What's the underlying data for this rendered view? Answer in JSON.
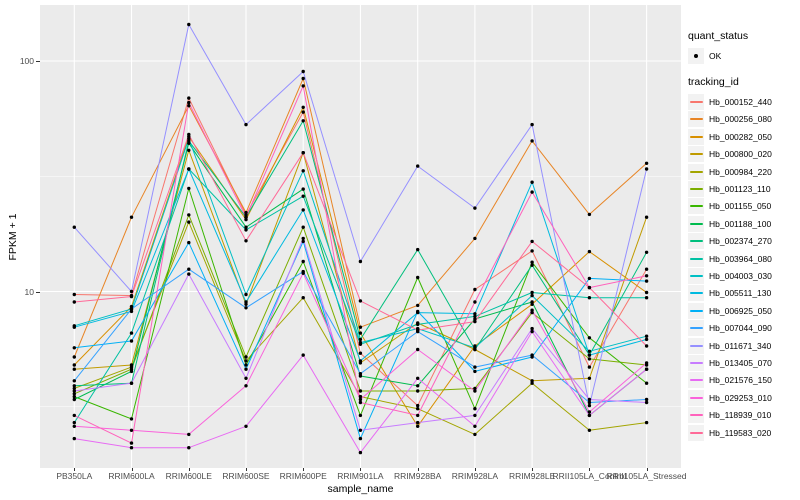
{
  "figure": {
    "panel_background": "#EBEBEB",
    "grid_color": "#FFFFFF",
    "axis_text_color": "#4D4D4D",
    "point_color": "#000000"
  },
  "legend": {
    "quant_status_title": "quant_status",
    "quant_status_items": [
      {
        "label": "OK",
        "marker": "black-point"
      }
    ],
    "tracking_id_title": "tracking_id",
    "key_background": "#F2F2F2"
  },
  "chart_data": {
    "type": "line",
    "title": "",
    "xlabel": "sample_name",
    "ylabel": "FPKM + 1",
    "y_scale": "log10",
    "y_ticks": [
      100,
      10
    ],
    "y_minor_ticks": [
      31.62,
      3.162
    ],
    "ylim": [
      1.72,
      175
    ],
    "grid": true,
    "legend_position": "right",
    "marker": "black-point",
    "categories": [
      "PB350LA",
      "RRIM600LA",
      "RRIM600LE",
      "RRIM600SE",
      "RRIM600PE",
      "RRIM901LA",
      "RRIM928BA",
      "RRIM928LA",
      "RRIM928LE",
      "RRII105LA_Control",
      "RRII105LA_Stressed"
    ],
    "series": [
      {
        "name": "Hb_000152_440",
        "color": "#F8766D",
        "values": [
          9.7,
          9.6,
          69,
          21.5,
          60,
          5.4,
          3.2,
          10.2,
          15.0,
          4.7,
          12.5
        ]
      },
      {
        "name": "Hb_000256_080",
        "color": "#E88526",
        "values": [
          5.2,
          21,
          64,
          22,
          84,
          7.0,
          8.7,
          17,
          45,
          21.6,
          36
        ]
      },
      {
        "name": "Hb_000282_050",
        "color": "#D89000",
        "values": [
          4.8,
          8.6,
          47,
          20.5,
          63,
          6.6,
          2.6,
          5.8,
          8.8,
          14.9,
          9.9
        ]
      },
      {
        "name": "Hb_000800_020",
        "color": "#C09B00",
        "values": [
          4.6,
          4.8,
          41,
          8.8,
          40,
          4.9,
          7.3,
          5.6,
          4.1,
          4.2,
          21
        ]
      },
      {
        "name": "Hb_000984_220",
        "color": "#A3A500",
        "values": [
          3.8,
          4.7,
          20,
          5.0,
          9.4,
          3.5,
          3.1,
          2.4,
          4.0,
          2.5,
          2.7
        ]
      },
      {
        "name": "Hb_001123_110",
        "color": "#7CAE00",
        "values": [
          3.6,
          4.6,
          21.5,
          5.2,
          19,
          3.7,
          3.7,
          3.8,
          8.1,
          5.1,
          4.8
        ]
      },
      {
        "name": "Hb_001155_050",
        "color": "#39B600",
        "values": [
          3.5,
          2.8,
          28,
          4.8,
          13.5,
          2.9,
          11.5,
          3.1,
          13.4,
          6.3,
          4.0
        ]
      },
      {
        "name": "Hb_001188_100",
        "color": "#00BB4E",
        "values": [
          3.4,
          4.5,
          44,
          19,
          27.8,
          4.3,
          3.9,
          7.6,
          9.0,
          2.9,
          4.6
        ]
      },
      {
        "name": "Hb_002374_270",
        "color": "#00BF7D",
        "values": [
          3.9,
          4.0,
          45,
          21,
          55,
          6.2,
          15.2,
          5.6,
          13.0,
          5.3,
          14.8
        ]
      },
      {
        "name": "Hb_003964_080",
        "color": "#00C1A3",
        "values": [
          2.7,
          6.6,
          34,
          18.5,
          25.9,
          5.9,
          7.2,
          7.8,
          9.9,
          9.4,
          9.4
        ]
      },
      {
        "name": "Hb_004003_030",
        "color": "#00BFC4",
        "values": [
          7.1,
          8.4,
          46,
          9.7,
          33.4,
          6.0,
          6.9,
          5.7,
          9.6,
          5.5,
          6.4
        ]
      },
      {
        "name": "Hb_005511_130",
        "color": "#00BAE0",
        "values": [
          7.0,
          8.2,
          34,
          9.0,
          22.6,
          5.0,
          8.1,
          8.0,
          29.8,
          5.3,
          6.2
        ]
      },
      {
        "name": "Hb_006925_050",
        "color": "#00B0F6",
        "values": [
          5.7,
          6.1,
          16.3,
          4.6,
          16.5,
          2.3,
          8.2,
          4.5,
          5.2,
          11.4,
          11.1
        ]
      },
      {
        "name": "Hb_007044_090",
        "color": "#35A2FF",
        "values": [
          4.1,
          8.4,
          12.5,
          8.5,
          12.2,
          4.4,
          6.7,
          4.7,
          5.3,
          3.3,
          3.4
        ]
      },
      {
        "name": "Hb_011671_340",
        "color": "#9590FF",
        "values": [
          19,
          10,
          144,
          53,
          90,
          13.5,
          35,
          23,
          53,
          3.2,
          34
        ]
      },
      {
        "name": "Hb_013405_070",
        "color": "#C77CFF",
        "values": [
          3.7,
          4.0,
          11.9,
          4.2,
          17,
          2.5,
          2.7,
          2.9,
          6.9,
          3.4,
          3.3
        ]
      },
      {
        "name": "Hb_021576_150",
        "color": "#E76BF3",
        "values": [
          2.3,
          2.1,
          2.1,
          2.6,
          5.3,
          2.0,
          4.2,
          2.6,
          6.7,
          2.9,
          4.6
        ]
      },
      {
        "name": "Hb_029253_010",
        "color": "#FA62DB",
        "values": [
          2.6,
          2.5,
          2.4,
          3.9,
          12.0,
          3.4,
          5.6,
          3.7,
          8.3,
          3.0,
          4.9
        ]
      },
      {
        "name": "Hb_118939_010",
        "color": "#FF62BC",
        "values": [
          2.9,
          2.2,
          66,
          21,
          78,
          3.3,
          2.9,
          9.0,
          27,
          10.4,
          11.7
        ]
      },
      {
        "name": "Hb_119583_020",
        "color": "#FF6A98",
        "values": [
          9.0,
          9.5,
          48,
          16.6,
          40,
          9.1,
          6.8,
          7.4,
          16.5,
          10.4,
          5.8
        ]
      }
    ]
  }
}
